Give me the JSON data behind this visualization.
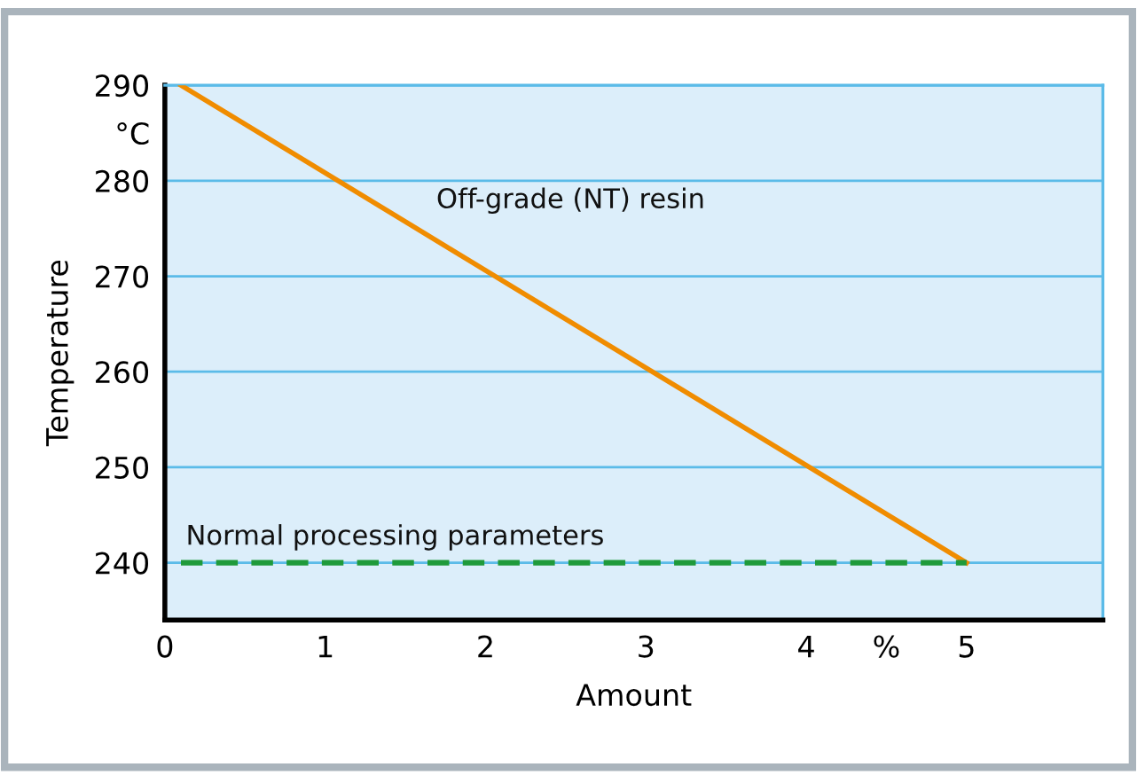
{
  "chart_data": {
    "type": "line",
    "xlabel": "Amount",
    "ylabel": "Temperature",
    "x": [
      0.1,
      5
    ],
    "series": [
      {
        "name": "Off-grade (NT) resin",
        "color": "#f08c00",
        "values": [
          290,
          240
        ],
        "line_style": "solid"
      },
      {
        "name": "Normal processing parameters",
        "color": "#1f9a3a",
        "values": [
          240,
          240
        ],
        "line_style": "dashed"
      }
    ],
    "xlim": [
      0,
      5.85
    ],
    "ylim": [
      234,
      290
    ],
    "xticks": [
      0,
      1,
      2,
      3,
      4,
      {
        "value": 4.5,
        "label": "%"
      },
      5
    ],
    "yticks": [
      240,
      250,
      260,
      270,
      280,
      {
        "value": 285,
        "label": "°C"
      },
      290
    ],
    "grid": "y",
    "legend": false
  }
}
